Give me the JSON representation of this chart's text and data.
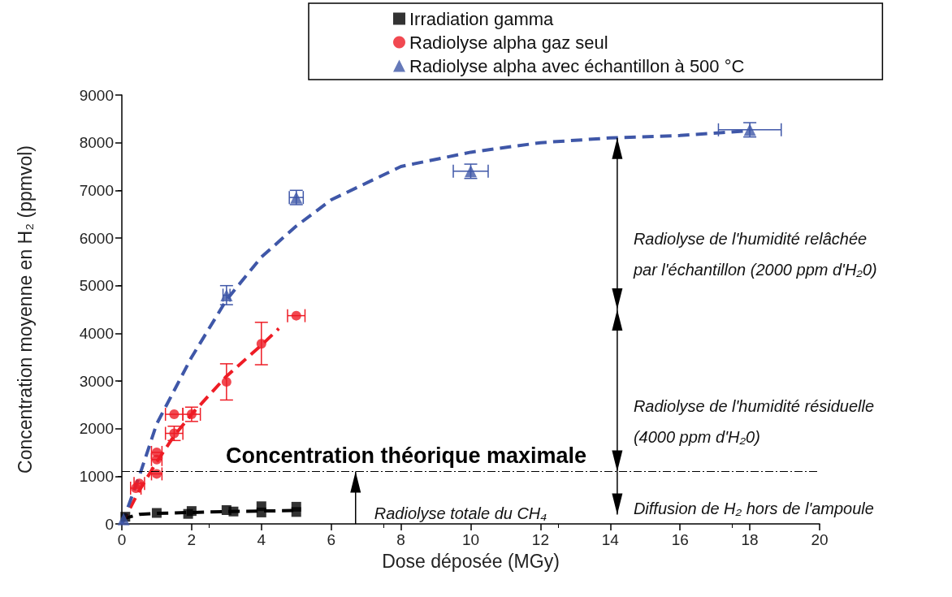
{
  "chart_data": {
    "type": "scatter",
    "xlabel": "Dose déposée (MGy)",
    "ylabel": "Concentration moyenne en H₂ (ppmvol)",
    "xlim": [
      0,
      20
    ],
    "xticks": [
      0,
      2,
      4,
      6,
      8,
      10,
      12,
      14,
      16,
      18,
      20
    ],
    "ylim": [
      0,
      9000
    ],
    "yticks": [
      0,
      1000,
      2000,
      3000,
      4000,
      5000,
      6000,
      7000,
      8000,
      9000
    ],
    "grid": false,
    "legend": "top",
    "series": [
      {
        "name": "Irradiation gamma",
        "color": "#000000",
        "marker": "square",
        "x": [
          0.1,
          1,
          1.9,
          2,
          3,
          3.2,
          4,
          4,
          5,
          5
        ],
        "values": [
          150,
          230,
          210,
          270,
          290,
          260,
          370,
          240,
          360,
          250
        ]
      },
      {
        "name": "Radiolyse alpha gaz seul",
        "color": "#ee1c25",
        "marker": "circle",
        "x": [
          0.4,
          0.5,
          1,
          1,
          1,
          1.5,
          1.5,
          2,
          3,
          4,
          5
        ],
        "values": [
          750,
          850,
          1050,
          1350,
          1500,
          1900,
          2300,
          2300,
          2980,
          3780,
          4370
        ],
        "errors": [
          null,
          null,
          null,
          null,
          null,
          150,
          null,
          150,
          [
            2600,
            3360
          ],
          [
            3340,
            4230
          ],
          null
        ],
        "xerrors": [
          0.15,
          0.15,
          0.15,
          0.15,
          0.15,
          0.25,
          0.25,
          0.25,
          null,
          null,
          0.25
        ]
      },
      {
        "name": "Radiolyse alpha avec échantillon à 500 °C",
        "color": "#3f57a8",
        "marker": "triangle",
        "x": [
          0.05,
          3,
          5,
          10,
          18
        ],
        "values": [
          100,
          4800,
          6850,
          7400,
          8270
        ],
        "errors": [
          null,
          200,
          150,
          150,
          150
        ],
        "xerrors": [
          null,
          0.1,
          0.2,
          0.5,
          0.9
        ]
      },
      {
        "type": "line",
        "color": "#000000",
        "marker": "none",
        "line_style": "dashed",
        "x": [
          0,
          0.5,
          1,
          2,
          3,
          4,
          5
        ],
        "values": [
          100,
          200,
          220,
          240,
          260,
          270,
          280
        ]
      },
      {
        "type": "line",
        "color": "#ee1c25",
        "marker": "none",
        "line_style": "dashed",
        "x": [
          0,
          0.5,
          1,
          1.5,
          2,
          3,
          4,
          4.5
        ],
        "values": [
          0,
          700,
          1300,
          1850,
          2300,
          3100,
          3750,
          4100
        ]
      },
      {
        "type": "line",
        "color": "#3f57a8",
        "marker": "none",
        "line_style": "dashed",
        "x": [
          0,
          0.5,
          1,
          2,
          3,
          4,
          5,
          6,
          8,
          10,
          12,
          14,
          16,
          18
        ],
        "values": [
          0,
          1000,
          2100,
          3500,
          4700,
          5600,
          6250,
          6800,
          7500,
          7800,
          8000,
          8100,
          8150,
          8250
        ]
      }
    ],
    "ref_lines": [
      {
        "axis": "y",
        "value": 1100,
        "label": "Concentration théorique maximale",
        "color": "#000000",
        "line_style": "dashdot"
      }
    ],
    "annotations": [
      {
        "text": "Radiolyse totale du CH₄",
        "x": 6.7,
        "y": 1100
      },
      "Radiolyse de l'humidité relâchée par l'échantillon (2000 ppm d'H₂0)",
      "Radiolyse de l'humidité résiduelle (4000 ppm d'H₂0)",
      {
        "text": "Diffusion de H₂ hors de l'ampoule",
        "x": 14.2,
        "y": 1100
      }
    ]
  }
}
